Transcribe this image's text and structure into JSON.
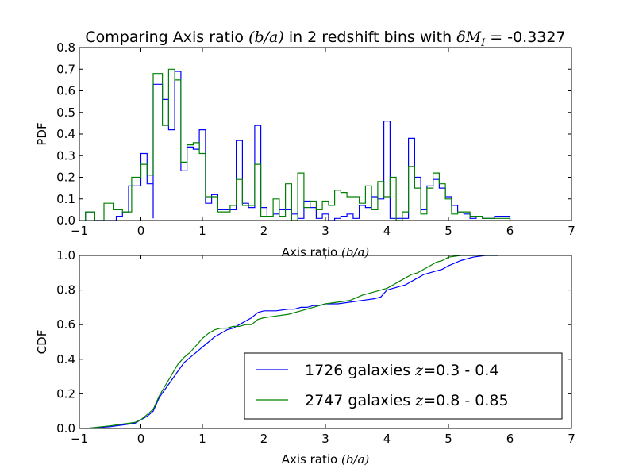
{
  "chart_data": [
    {
      "type": "step-histogram",
      "title": "Comparing Axis ratio (b/a) in 2 redshift bins with δM_I = -0.3327",
      "title_parts": {
        "prefix": "Comparing Axis ratio ",
        "math1": "(b/a)",
        "middle": " in 2 redshift bins with ",
        "math2": "δM",
        "math2_sub": "I",
        "suffix": " = -0.3327"
      },
      "xlabel": "Axis ratio (b/a)",
      "xlabel_parts": {
        "text": "Axis ratio ",
        "math": "(b/a)"
      },
      "ylabel": "PDF",
      "xlim": [
        -1,
        7
      ],
      "ylim": [
        0,
        0.8
      ],
      "xticks": [
        -1,
        0,
        1,
        2,
        3,
        4,
        5,
        6,
        7
      ],
      "yticks": [
        0.0,
        0.1,
        0.2,
        0.3,
        0.4,
        0.5,
        0.6,
        0.7,
        0.8
      ],
      "grid": false,
      "series": [
        {
          "color": "#0000ff",
          "points": [
            [
              -0.9,
              0.04
            ],
            [
              -0.75,
              0.0
            ],
            [
              -0.4,
              0.02
            ],
            [
              -0.3,
              0.04
            ],
            [
              -0.2,
              0.16
            ],
            [
              -0.1,
              0.16
            ],
            [
              0.0,
              0.31
            ],
            [
              0.1,
              0.17
            ],
            [
              0.2,
              0.01
            ],
            [
              0.2,
              0.63
            ],
            [
              0.35,
              0.56
            ],
            [
              0.45,
              0.42
            ],
            [
              0.55,
              0.69
            ],
            [
              0.65,
              0.23
            ],
            [
              0.75,
              0.34
            ],
            [
              0.85,
              0.33
            ],
            [
              0.95,
              0.42
            ],
            [
              1.05,
              0.08
            ],
            [
              1.15,
              0.12
            ],
            [
              1.25,
              0.05
            ],
            [
              1.35,
              0.05
            ],
            [
              1.55,
              0.37
            ],
            [
              1.65,
              0.08
            ],
            [
              1.75,
              0.06
            ],
            [
              1.85,
              0.44
            ],
            [
              1.95,
              0.06
            ],
            [
              2.05,
              0.02
            ],
            [
              2.15,
              0.03
            ],
            [
              2.25,
              0.05
            ],
            [
              2.35,
              0.05
            ],
            [
              2.45,
              0.03
            ],
            [
              2.55,
              0.01
            ],
            [
              2.65,
              0.09
            ],
            [
              2.75,
              0.06
            ],
            [
              2.85,
              0.01
            ],
            [
              2.95,
              0.03
            ],
            [
              3.05,
              0.0
            ],
            [
              3.15,
              0.01
            ],
            [
              3.25,
              0.02
            ],
            [
              3.35,
              0.03
            ],
            [
              3.45,
              0.01
            ],
            [
              3.55,
              0.07
            ],
            [
              3.65,
              0.06
            ],
            [
              3.75,
              0.11
            ],
            [
              3.85,
              0.1
            ],
            [
              3.95,
              0.46
            ],
            [
              4.05,
              0.01
            ],
            [
              4.15,
              0.01
            ],
            [
              4.25,
              0.01
            ],
            [
              4.35,
              0.38
            ],
            [
              4.45,
              0.2
            ],
            [
              4.55,
              0.05
            ],
            [
              4.65,
              0.16
            ],
            [
              4.75,
              0.19
            ],
            [
              4.85,
              0.15
            ],
            [
              4.95,
              0.11
            ],
            [
              5.05,
              0.07
            ],
            [
              5.15,
              0.04
            ],
            [
              5.25,
              0.03
            ],
            [
              5.35,
              0.01
            ],
            [
              5.45,
              0.02
            ],
            [
              5.55,
              0.01
            ],
            [
              5.65,
              0.01
            ],
            [
              5.75,
              0.02
            ],
            [
              6.0,
              0.0
            ]
          ]
        },
        {
          "color": "#008000",
          "points": [
            [
              -0.9,
              0.04
            ],
            [
              -0.75,
              0.0
            ],
            [
              -0.6,
              0.08
            ],
            [
              -0.45,
              0.05
            ],
            [
              -0.3,
              0.04
            ],
            [
              -0.15,
              0.2
            ],
            [
              0.0,
              0.26
            ],
            [
              0.1,
              0.21
            ],
            [
              0.2,
              0.68
            ],
            [
              0.35,
              0.44
            ],
            [
              0.45,
              0.7
            ],
            [
              0.55,
              0.65
            ],
            [
              0.65,
              0.27
            ],
            [
              0.75,
              0.35
            ],
            [
              0.85,
              0.36
            ],
            [
              0.95,
              0.31
            ],
            [
              1.05,
              0.11
            ],
            [
              1.15,
              0.11
            ],
            [
              1.25,
              0.04
            ],
            [
              1.35,
              0.04
            ],
            [
              1.45,
              0.07
            ],
            [
              1.55,
              0.19
            ],
            [
              1.65,
              0.07
            ],
            [
              1.75,
              0.07
            ],
            [
              1.85,
              0.26
            ],
            [
              1.95,
              0.02
            ],
            [
              2.05,
              0.02
            ],
            [
              2.15,
              0.1
            ],
            [
              2.25,
              0.02
            ],
            [
              2.35,
              0.17
            ],
            [
              2.45,
              0.0
            ],
            [
              2.55,
              0.22
            ],
            [
              2.65,
              0.06
            ],
            [
              2.75,
              0.09
            ],
            [
              2.85,
              0.05
            ],
            [
              2.95,
              0.09
            ],
            [
              3.05,
              0.07
            ],
            [
              3.15,
              0.14
            ],
            [
              3.25,
              0.13
            ],
            [
              3.35,
              0.11
            ],
            [
              3.45,
              0.11
            ],
            [
              3.55,
              0.08
            ],
            [
              3.65,
              0.16
            ],
            [
              3.75,
              0.05
            ],
            [
              3.85,
              0.18
            ],
            [
              3.95,
              0.11
            ],
            [
              4.05,
              0.2
            ],
            [
              4.15,
              0.0
            ],
            [
              4.25,
              0.04
            ],
            [
              4.35,
              0.25
            ],
            [
              4.45,
              0.15
            ],
            [
              4.55,
              0.03
            ],
            [
              4.65,
              0.15
            ],
            [
              4.75,
              0.22
            ],
            [
              4.85,
              0.17
            ],
            [
              4.95,
              0.1
            ],
            [
              5.05,
              0.03
            ],
            [
              5.15,
              0.04
            ],
            [
              5.25,
              0.04
            ],
            [
              5.35,
              0.02
            ],
            [
              5.45,
              0.02
            ],
            [
              5.55,
              0.01
            ],
            [
              5.65,
              0.01
            ],
            [
              5.75,
              0.01
            ],
            [
              6.0,
              0.0
            ]
          ]
        }
      ]
    },
    {
      "type": "line",
      "xlabel": "Axis ratio (b/a)",
      "xlabel_parts": {
        "text": "Axis ratio ",
        "math": "(b/a)"
      },
      "ylabel": "CDF",
      "xlim": [
        -1,
        7
      ],
      "ylim": [
        0,
        1.0
      ],
      "xticks": [
        -1,
        0,
        1,
        2,
        3,
        4,
        5,
        6,
        7
      ],
      "yticks": [
        0.0,
        0.2,
        0.4,
        0.6,
        0.8,
        1.0
      ],
      "grid": false,
      "legend_position": "lower-right",
      "series": [
        {
          "name": "1726 galaxies z=0.3 - 0.4",
          "name_parts": {
            "text": "1726 galaxies ",
            "math": "z",
            "suffix": "=0.3 - 0.4"
          },
          "color": "#0000ff",
          "x": [
            -0.9,
            -0.7,
            -0.5,
            -0.3,
            -0.1,
            0.0,
            0.1,
            0.2,
            0.3,
            0.4,
            0.5,
            0.6,
            0.7,
            0.8,
            0.9,
            1.0,
            1.1,
            1.2,
            1.3,
            1.4,
            1.5,
            1.6,
            1.7,
            1.8,
            1.9,
            2.0,
            2.2,
            2.4,
            2.5,
            2.6,
            2.7,
            2.8,
            2.9,
            3.0,
            3.2,
            3.4,
            3.6,
            3.8,
            3.9,
            4.0,
            4.1,
            4.2,
            4.3,
            4.4,
            4.5,
            4.6,
            4.7,
            4.8,
            4.9,
            5.0,
            5.2,
            5.4,
            5.6,
            5.8
          ],
          "y": [
            0.0,
            0.005,
            0.01,
            0.02,
            0.03,
            0.05,
            0.07,
            0.1,
            0.18,
            0.23,
            0.28,
            0.33,
            0.38,
            0.41,
            0.44,
            0.47,
            0.5,
            0.53,
            0.55,
            0.57,
            0.58,
            0.6,
            0.62,
            0.64,
            0.67,
            0.68,
            0.68,
            0.69,
            0.69,
            0.7,
            0.7,
            0.71,
            0.71,
            0.72,
            0.72,
            0.73,
            0.74,
            0.75,
            0.76,
            0.8,
            0.81,
            0.82,
            0.83,
            0.85,
            0.87,
            0.89,
            0.9,
            0.91,
            0.92,
            0.94,
            0.97,
            0.99,
            1.0,
            1.0
          ]
        },
        {
          "name": "2747 galaxies z=0.8 - 0.85",
          "name_parts": {
            "text": "2747 galaxies ",
            "math": "z",
            "suffix": "=0.8 - 0.85"
          },
          "color": "#008000",
          "x": [
            -0.9,
            -0.7,
            -0.5,
            -0.3,
            -0.1,
            0.0,
            0.1,
            0.2,
            0.3,
            0.4,
            0.5,
            0.6,
            0.7,
            0.8,
            0.9,
            1.0,
            1.1,
            1.2,
            1.3,
            1.4,
            1.5,
            1.6,
            1.7,
            1.8,
            1.9,
            2.0,
            2.2,
            2.4,
            2.6,
            2.8,
            3.0,
            3.2,
            3.4,
            3.6,
            3.8,
            4.0,
            4.1,
            4.2,
            4.3,
            4.4,
            4.5,
            4.6,
            4.7,
            4.8,
            4.9,
            5.0,
            5.2,
            5.4,
            5.6,
            5.8
          ],
          "y": [
            0.0,
            0.008,
            0.015,
            0.025,
            0.035,
            0.05,
            0.08,
            0.11,
            0.19,
            0.25,
            0.31,
            0.37,
            0.41,
            0.44,
            0.48,
            0.52,
            0.55,
            0.57,
            0.58,
            0.58,
            0.59,
            0.59,
            0.6,
            0.6,
            0.63,
            0.64,
            0.65,
            0.66,
            0.68,
            0.7,
            0.72,
            0.73,
            0.74,
            0.77,
            0.79,
            0.81,
            0.83,
            0.85,
            0.87,
            0.89,
            0.9,
            0.92,
            0.94,
            0.96,
            0.97,
            0.99,
            1.0,
            1.0,
            1.0,
            1.0
          ]
        }
      ]
    }
  ]
}
